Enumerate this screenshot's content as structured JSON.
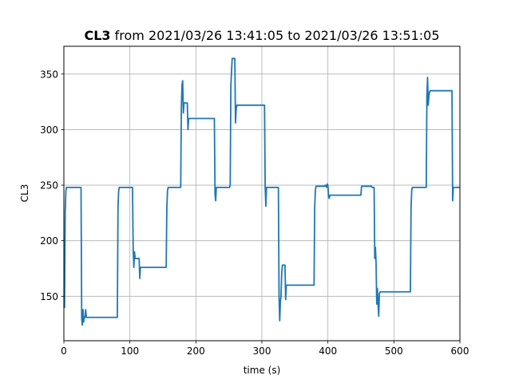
{
  "chart_data": {
    "type": "line",
    "title_bold": "CL3",
    "title_rest": " from 2021/03/26 13:41:05 to 2021/03/26 13:51:05",
    "xlabel": "time (s)",
    "ylabel": "CL3",
    "xlim": [
      0,
      600
    ],
    "ylim": [
      110,
      375
    ],
    "xticks": [
      0,
      100,
      200,
      300,
      400,
      500,
      600
    ],
    "yticks": [
      150,
      200,
      250,
      300,
      350
    ],
    "grid": true,
    "line_color": "#1f77b4",
    "series": [
      {
        "points": [
          [
            0,
            142
          ],
          [
            1,
            140
          ],
          [
            2,
            225
          ],
          [
            3,
            245
          ],
          [
            4,
            248
          ],
          [
            26,
            248
          ],
          [
            27,
            130
          ],
          [
            28,
            124
          ],
          [
            29,
            138
          ],
          [
            30,
            127
          ],
          [
            31,
            131
          ],
          [
            32,
            131
          ],
          [
            33,
            138
          ],
          [
            34,
            131
          ],
          [
            35,
            131
          ],
          [
            81,
            131
          ],
          [
            82,
            230
          ],
          [
            83,
            245
          ],
          [
            84,
            248
          ],
          [
            104,
            248
          ],
          [
            105,
            192
          ],
          [
            106,
            176
          ],
          [
            107,
            190
          ],
          [
            108,
            184
          ],
          [
            114,
            184
          ],
          [
            115,
            166
          ],
          [
            116,
            176
          ],
          [
            117,
            176
          ],
          [
            155,
            176
          ],
          [
            156,
            230
          ],
          [
            157,
            245
          ],
          [
            158,
            248
          ],
          [
            177,
            248
          ],
          [
            178,
            320
          ],
          [
            179,
            340
          ],
          [
            180,
            344
          ],
          [
            181,
            315
          ],
          [
            182,
            324
          ],
          [
            187,
            324
          ],
          [
            188,
            300
          ],
          [
            189,
            310
          ],
          [
            228,
            310
          ],
          [
            229,
            242
          ],
          [
            230,
            236
          ],
          [
            231,
            248
          ],
          [
            251,
            248
          ],
          [
            252,
            250
          ],
          [
            253,
            340
          ],
          [
            254,
            352
          ],
          [
            255,
            364
          ],
          [
            259,
            364
          ],
          [
            260,
            306
          ],
          [
            261,
            318
          ],
          [
            262,
            322
          ],
          [
            304,
            322
          ],
          [
            305,
            248
          ],
          [
            306,
            231
          ],
          [
            307,
            248
          ],
          [
            325,
            248
          ],
          [
            326,
            150
          ],
          [
            327,
            128
          ],
          [
            328,
            145
          ],
          [
            329,
            150
          ],
          [
            330,
            170
          ],
          [
            331,
            178
          ],
          [
            335,
            178
          ],
          [
            336,
            147
          ],
          [
            337,
            160
          ],
          [
            379,
            160
          ],
          [
            380,
            230
          ],
          [
            381,
            245
          ],
          [
            382,
            249
          ],
          [
            395,
            249
          ],
          [
            396,
            250
          ],
          [
            398,
            248
          ],
          [
            399,
            251
          ],
          [
            400,
            250
          ],
          [
            401,
            240
          ],
          [
            402,
            238
          ],
          [
            403,
            241
          ],
          [
            450,
            241
          ],
          [
            451,
            249
          ],
          [
            466,
            249
          ],
          [
            467,
            248
          ],
          [
            470,
            248
          ],
          [
            471,
            184
          ],
          [
            472,
            194
          ],
          [
            473,
            180
          ],
          [
            474,
            143
          ],
          [
            475,
            157
          ],
          [
            476,
            143
          ],
          [
            477,
            132
          ],
          [
            478,
            152
          ],
          [
            479,
            154
          ],
          [
            525,
            154
          ],
          [
            526,
            230
          ],
          [
            527,
            245
          ],
          [
            528,
            248
          ],
          [
            549,
            248
          ],
          [
            550,
            330
          ],
          [
            551,
            347
          ],
          [
            552,
            322
          ],
          [
            553,
            330
          ],
          [
            554,
            334
          ],
          [
            555,
            335
          ],
          [
            588,
            335
          ],
          [
            589,
            236
          ],
          [
            590,
            248
          ],
          [
            600,
            248
          ]
        ]
      }
    ]
  }
}
